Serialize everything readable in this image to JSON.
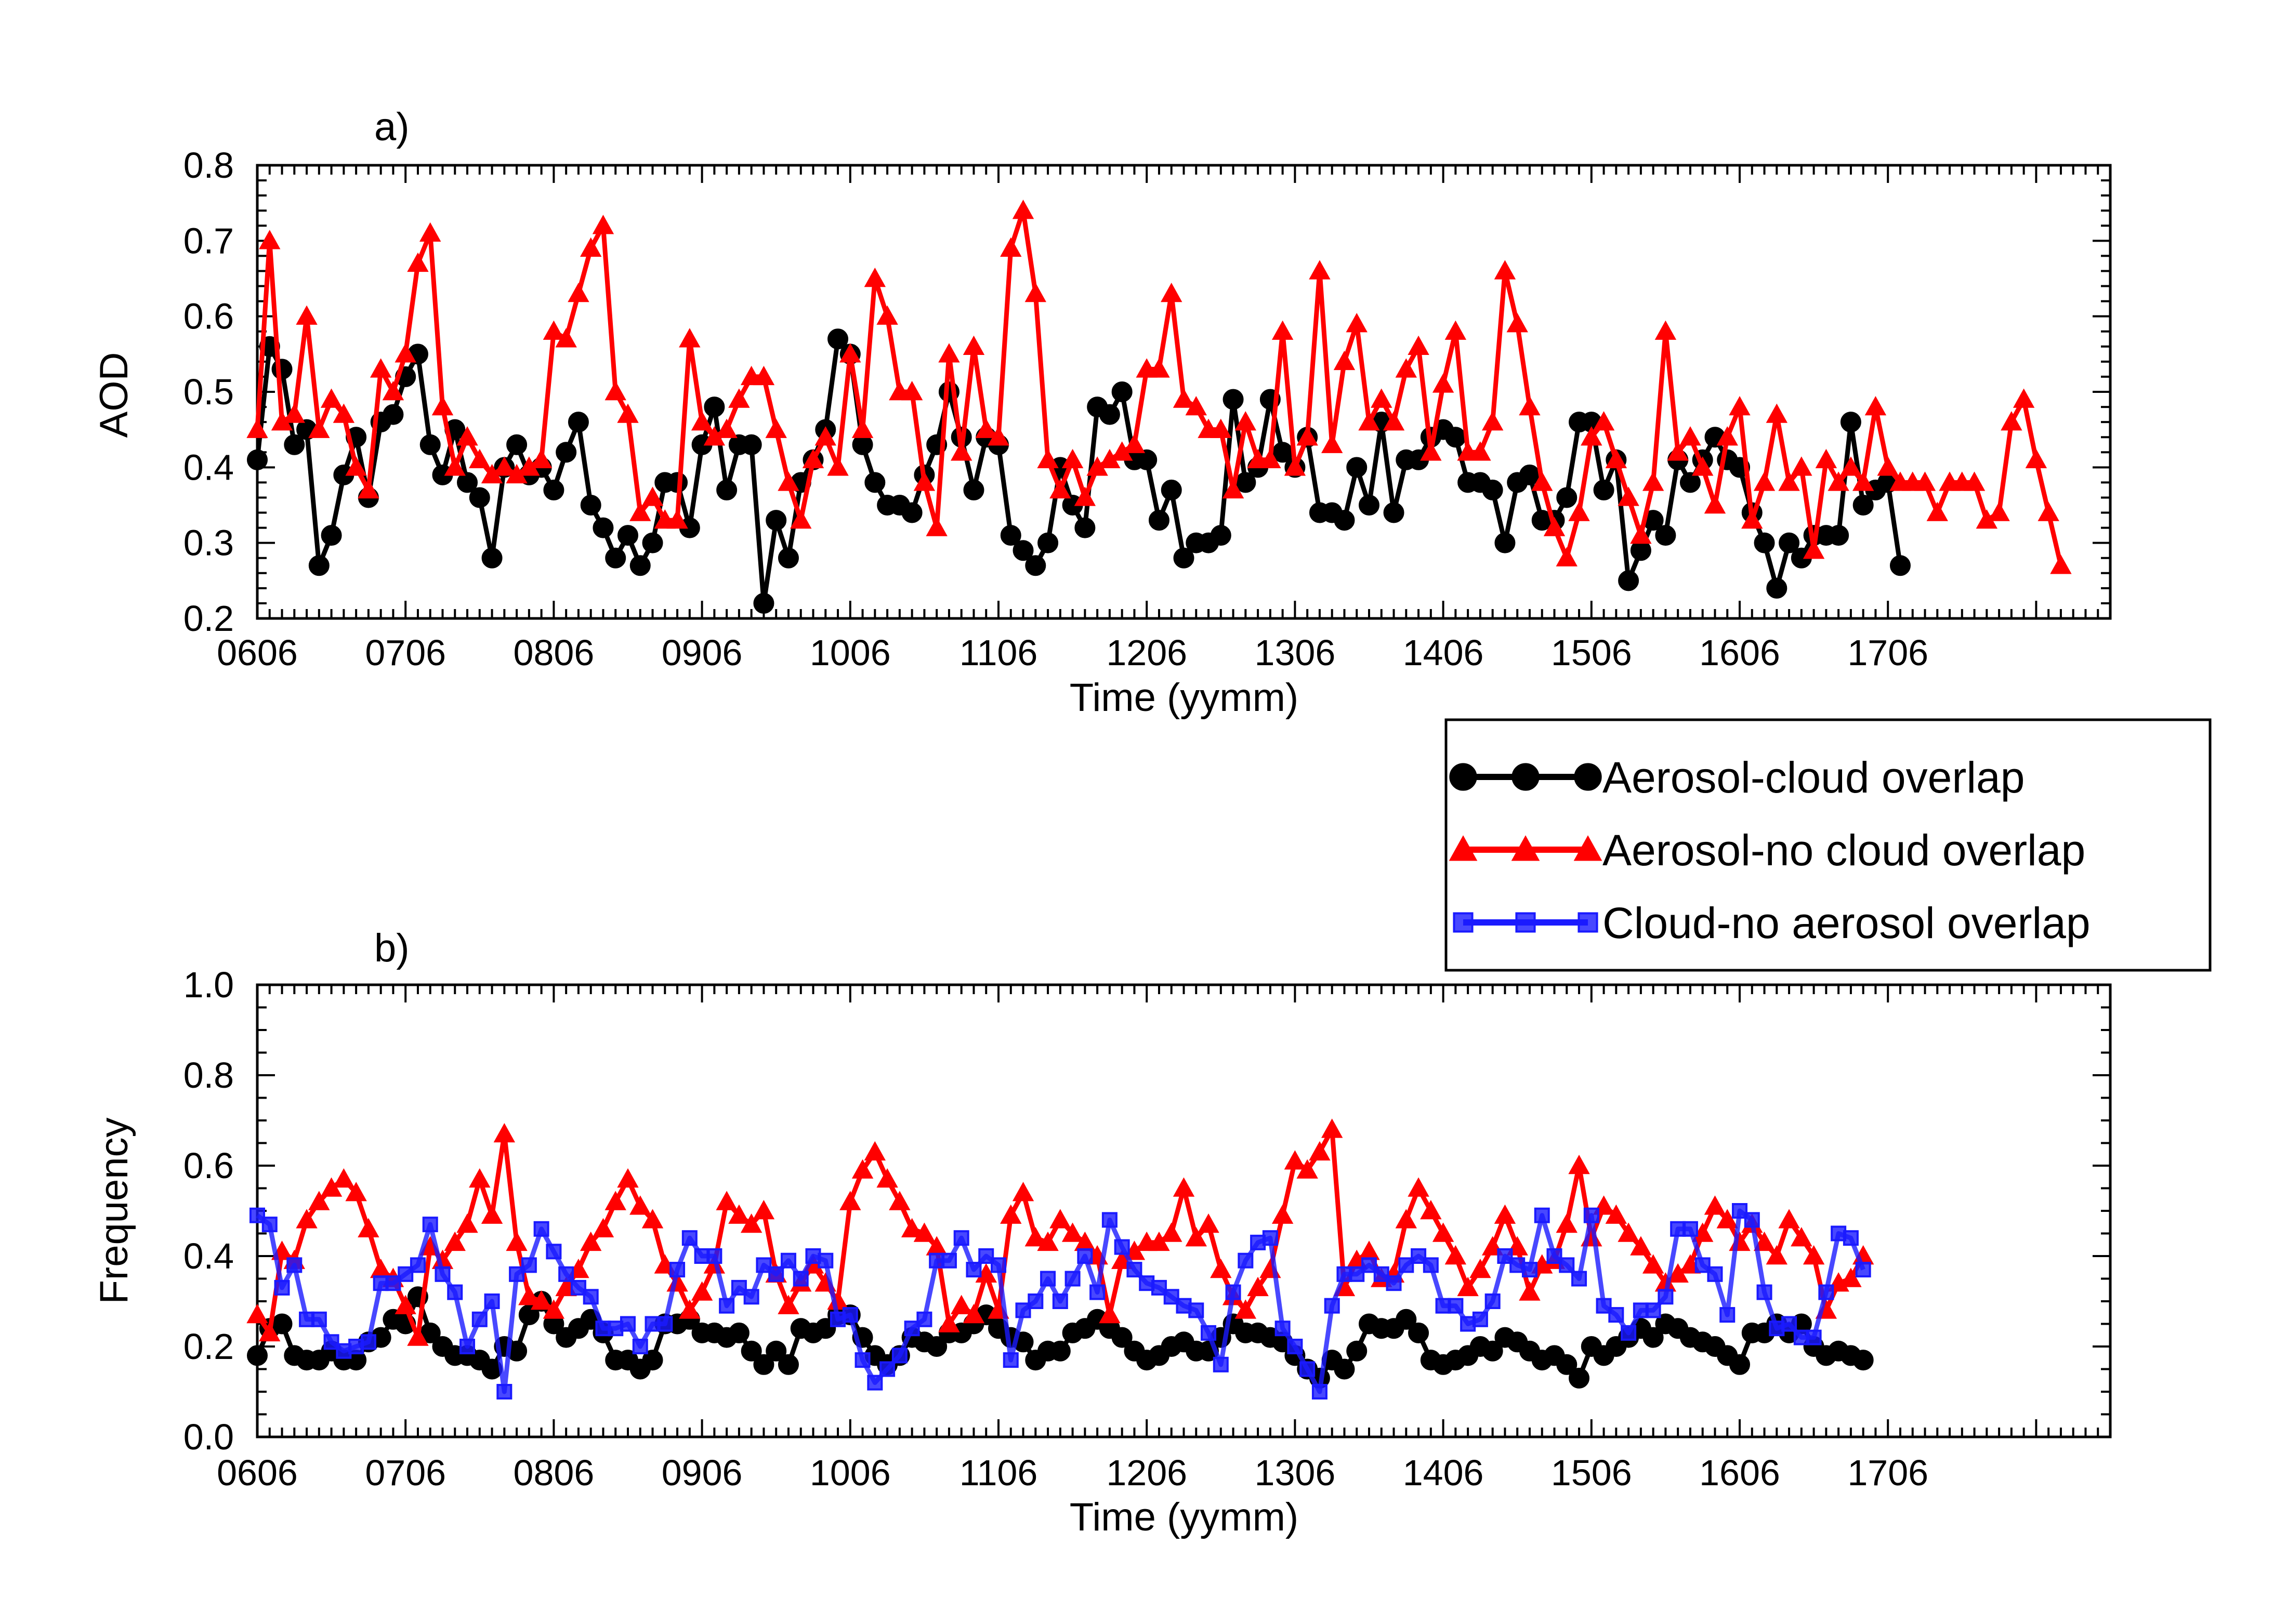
{
  "chart_data": [
    {
      "panel": "a)",
      "type": "line",
      "xlabel": "Time (yymm)",
      "ylabel": "AOD",
      "xlim": [
        0,
        132
      ],
      "ylim": [
        0.2,
        0.8
      ],
      "x_tick_labels": [
        "0606",
        "0706",
        "0806",
        "0906",
        "1006",
        "1106",
        "1206",
        "1306",
        "1406",
        "1506",
        "1606",
        "1706"
      ],
      "x_tick_values": [
        0,
        12,
        24,
        36,
        48,
        60,
        72,
        84,
        96,
        108,
        120,
        132
      ],
      "y_tick_labels": [
        "0.2",
        "0.3",
        "0.4",
        "0.5",
        "0.6",
        "0.7",
        "0.8"
      ],
      "grid": false,
      "series": [
        {
          "name": "Aerosol-cloud overlap",
          "color": "#000000",
          "marker": "circle",
          "values": [
            0.41,
            0.56,
            0.53,
            0.43,
            0.45,
            0.27,
            0.31,
            0.39,
            0.44,
            0.36,
            0.46,
            0.47,
            0.52,
            0.55,
            0.43,
            0.39,
            0.45,
            0.38,
            0.36,
            0.28,
            0.4,
            0.43,
            0.39,
            0.4,
            0.37,
            0.42,
            0.46,
            0.35,
            0.32,
            0.28,
            0.31,
            0.27,
            0.3,
            0.38,
            0.38,
            0.32,
            0.43,
            0.48,
            0.37,
            0.43,
            0.43,
            0.22,
            0.33,
            0.28,
            0.38,
            0.41,
            0.45,
            0.57,
            0.55,
            0.43,
            0.38,
            0.35,
            0.35,
            0.34,
            0.39,
            0.43,
            0.5,
            0.44,
            0.37,
            0.44,
            0.43,
            0.31,
            0.29,
            0.27,
            0.3,
            0.4,
            0.35,
            0.32,
            0.48,
            0.47,
            0.5,
            0.41,
            0.41,
            0.33,
            0.37,
            0.28,
            0.3,
            0.3,
            0.31,
            0.49,
            0.38,
            0.4,
            0.49,
            0.42,
            0.4,
            0.44,
            0.34,
            0.34,
            0.33,
            0.4,
            0.35,
            0.46,
            0.34,
            0.41,
            0.41,
            0.44,
            0.45,
            0.44,
            0.38,
            0.38,
            0.37,
            0.3,
            0.38,
            0.39,
            0.33,
            0.33,
            0.36,
            0.46,
            0.46,
            0.37,
            0.41,
            0.25,
            0.29,
            0.33,
            0.31,
            0.41,
            0.38,
            0.41,
            0.44,
            0.41,
            0.4,
            0.34,
            0.3,
            0.24,
            0.3,
            0.28,
            0.31,
            0.31,
            0.31,
            0.46,
            0.35,
            0.37,
            0.38,
            0.27
          ]
        },
        {
          "name": "Aerosol-no cloud overlap",
          "color": "#ff0000",
          "marker": "triangle",
          "values": [
            0.45,
            0.7,
            0.46,
            0.47,
            0.6,
            0.45,
            0.49,
            0.47,
            0.4,
            0.37,
            0.53,
            0.5,
            0.55,
            0.67,
            0.71,
            0.48,
            0.4,
            0.44,
            0.41,
            0.39,
            0.4,
            0.39,
            0.4,
            0.41,
            0.58,
            0.57,
            0.63,
            0.69,
            0.72,
            0.5,
            0.47,
            0.34,
            0.36,
            0.33,
            0.33,
            0.57,
            0.46,
            0.44,
            0.45,
            0.49,
            0.52,
            0.52,
            0.45,
            0.38,
            0.33,
            0.41,
            0.44,
            0.4,
            0.55,
            0.45,
            0.65,
            0.6,
            0.5,
            0.5,
            0.38,
            0.32,
            0.55,
            0.42,
            0.56,
            0.45,
            0.44,
            0.69,
            0.74,
            0.63,
            0.41,
            0.37,
            0.41,
            0.36,
            0.4,
            0.41,
            0.42,
            0.43,
            0.53,
            0.53,
            0.63,
            0.49,
            0.48,
            0.45,
            0.45,
            0.37,
            0.46,
            0.41,
            0.41,
            0.58,
            0.4,
            0.44,
            0.66,
            0.43,
            0.54,
            0.59,
            0.46,
            0.49,
            0.46,
            0.53,
            0.56,
            0.42,
            0.51,
            0.58,
            0.42,
            0.42,
            0.46,
            0.66,
            0.59,
            0.48,
            0.38,
            0.32,
            0.28,
            0.34,
            0.44,
            0.46,
            0.41,
            0.36,
            0.31,
            0.38,
            0.58,
            0.42,
            0.44,
            0.4,
            0.35,
            0.44,
            0.48,
            0.33,
            0.38,
            0.47,
            0.38,
            0.4,
            0.29,
            0.41,
            0.38,
            0.4,
            0.38,
            0.48,
            0.4,
            0.38,
            0.38,
            0.38,
            0.34,
            0.38,
            0.38,
            0.38,
            0.33,
            0.34,
            0.46,
            0.49,
            0.41,
            0.34,
            0.27
          ]
        }
      ]
    },
    {
      "panel": "b)",
      "type": "line",
      "xlabel": "Time (yymm)",
      "ylabel": "Frequency",
      "xlim": [
        0,
        132
      ],
      "ylim": [
        0.0,
        1.0
      ],
      "x_tick_labels": [
        "0606",
        "0706",
        "0806",
        "0906",
        "1006",
        "1106",
        "1206",
        "1306",
        "1406",
        "1506",
        "1606",
        "1706"
      ],
      "x_tick_values": [
        0,
        12,
        24,
        36,
        48,
        60,
        72,
        84,
        96,
        108,
        120,
        132
      ],
      "y_tick_labels": [
        "0.0",
        "0.2",
        "0.4",
        "0.6",
        "0.8",
        "1.0"
      ],
      "grid": false,
      "series": [
        {
          "name": "Aerosol-cloud overlap",
          "color": "#000000",
          "marker": "circle",
          "values": [
            0.18,
            0.24,
            0.25,
            0.18,
            0.17,
            0.17,
            0.19,
            0.17,
            0.17,
            0.21,
            0.22,
            0.26,
            0.25,
            0.31,
            0.23,
            0.2,
            0.18,
            0.18,
            0.17,
            0.15,
            0.2,
            0.19,
            0.27,
            0.3,
            0.25,
            0.22,
            0.24,
            0.26,
            0.23,
            0.17,
            0.17,
            0.15,
            0.17,
            0.25,
            0.25,
            0.26,
            0.23,
            0.23,
            0.22,
            0.23,
            0.19,
            0.16,
            0.19,
            0.16,
            0.24,
            0.23,
            0.24,
            0.27,
            0.27,
            0.22,
            0.18,
            0.16,
            0.18,
            0.22,
            0.21,
            0.2,
            0.23,
            0.23,
            0.25,
            0.27,
            0.24,
            0.22,
            0.21,
            0.17,
            0.19,
            0.19,
            0.23,
            0.24,
            0.26,
            0.24,
            0.22,
            0.19,
            0.17,
            0.18,
            0.2,
            0.21,
            0.19,
            0.19,
            0.22,
            0.25,
            0.23,
            0.23,
            0.22,
            0.21,
            0.18,
            0.15,
            0.13,
            0.17,
            0.15,
            0.19,
            0.25,
            0.24,
            0.24,
            0.26,
            0.23,
            0.17,
            0.16,
            0.17,
            0.18,
            0.2,
            0.19,
            0.22,
            0.21,
            0.19,
            0.17,
            0.18,
            0.16,
            0.13,
            0.2,
            0.18,
            0.2,
            0.22,
            0.24,
            0.22,
            0.25,
            0.24,
            0.22,
            0.21,
            0.2,
            0.18,
            0.16,
            0.23,
            0.23,
            0.25,
            0.23,
            0.25,
            0.2,
            0.18,
            0.19,
            0.18,
            0.17
          ]
        },
        {
          "name": "Aerosol-no cloud overlap",
          "color": "#ff0000",
          "marker": "triangle",
          "values": [
            0.27,
            0.23,
            0.41,
            0.39,
            0.48,
            0.52,
            0.55,
            0.57,
            0.54,
            0.46,
            0.37,
            0.35,
            0.29,
            0.22,
            0.42,
            0.39,
            0.43,
            0.47,
            0.57,
            0.49,
            0.67,
            0.43,
            0.31,
            0.3,
            0.28,
            0.33,
            0.37,
            0.43,
            0.46,
            0.52,
            0.57,
            0.51,
            0.48,
            0.38,
            0.34,
            0.28,
            0.32,
            0.38,
            0.52,
            0.49,
            0.47,
            0.5,
            0.36,
            0.29,
            0.34,
            0.38,
            0.34,
            0.3,
            0.52,
            0.59,
            0.63,
            0.57,
            0.52,
            0.46,
            0.45,
            0.42,
            0.25,
            0.29,
            0.27,
            0.36,
            0.28,
            0.49,
            0.54,
            0.44,
            0.43,
            0.48,
            0.45,
            0.43,
            0.4,
            0.27,
            0.39,
            0.41,
            0.43,
            0.43,
            0.45,
            0.55,
            0.44,
            0.47,
            0.37,
            0.31,
            0.28,
            0.33,
            0.37,
            0.49,
            0.61,
            0.59,
            0.63,
            0.68,
            0.33,
            0.39,
            0.41,
            0.35,
            0.36,
            0.48,
            0.55,
            0.5,
            0.45,
            0.4,
            0.33,
            0.37,
            0.42,
            0.49,
            0.42,
            0.32,
            0.38,
            0.39,
            0.47,
            0.6,
            0.44,
            0.51,
            0.49,
            0.45,
            0.42,
            0.38,
            0.34,
            0.36,
            0.38,
            0.45,
            0.51,
            0.48,
            0.43,
            0.47,
            0.43,
            0.4,
            0.48,
            0.44,
            0.4,
            0.28,
            0.34,
            0.35,
            0.4
          ]
        },
        {
          "name": "Cloud-no aerosol overlap",
          "color": "#1a1aff",
          "marker": "square",
          "values": [
            0.49,
            0.47,
            0.33,
            0.38,
            0.26,
            0.26,
            0.21,
            0.19,
            0.2,
            0.21,
            0.34,
            0.34,
            0.36,
            0.38,
            0.47,
            0.36,
            0.32,
            0.2,
            0.26,
            0.3,
            0.1,
            0.36,
            0.38,
            0.46,
            0.41,
            0.36,
            0.33,
            0.31,
            0.24,
            0.24,
            0.25,
            0.2,
            0.25,
            0.25,
            0.37,
            0.44,
            0.4,
            0.4,
            0.29,
            0.33,
            0.31,
            0.38,
            0.36,
            0.39,
            0.35,
            0.4,
            0.39,
            0.26,
            0.27,
            0.17,
            0.12,
            0.15,
            0.18,
            0.24,
            0.26,
            0.39,
            0.39,
            0.44,
            0.37,
            0.4,
            0.38,
            0.17,
            0.28,
            0.3,
            0.35,
            0.3,
            0.35,
            0.4,
            0.32,
            0.48,
            0.42,
            0.37,
            0.34,
            0.33,
            0.31,
            0.29,
            0.28,
            0.23,
            0.16,
            0.32,
            0.39,
            0.43,
            0.44,
            0.24,
            0.2,
            0.15,
            0.1,
            0.29,
            0.36,
            0.36,
            0.38,
            0.36,
            0.34,
            0.38,
            0.4,
            0.38,
            0.29,
            0.29,
            0.25,
            0.26,
            0.3,
            0.4,
            0.38,
            0.37,
            0.49,
            0.4,
            0.38,
            0.35,
            0.49,
            0.29,
            0.27,
            0.23,
            0.28,
            0.28,
            0.31,
            0.46,
            0.46,
            0.38,
            0.36,
            0.27,
            0.5,
            0.48,
            0.32,
            0.24,
            0.25,
            0.22,
            0.22,
            0.32,
            0.45,
            0.44,
            0.37
          ]
        }
      ]
    }
  ],
  "legend": {
    "placement": "right, between panels",
    "items": [
      {
        "label": "Aerosol-cloud overlap",
        "color": "#000000",
        "marker": "circle"
      },
      {
        "label": "Aerosol-no cloud overlap",
        "color": "#ff0000",
        "marker": "triangle"
      },
      {
        "label": "Cloud-no aerosol overlap",
        "color": "#1a1aff",
        "marker": "square"
      }
    ]
  }
}
